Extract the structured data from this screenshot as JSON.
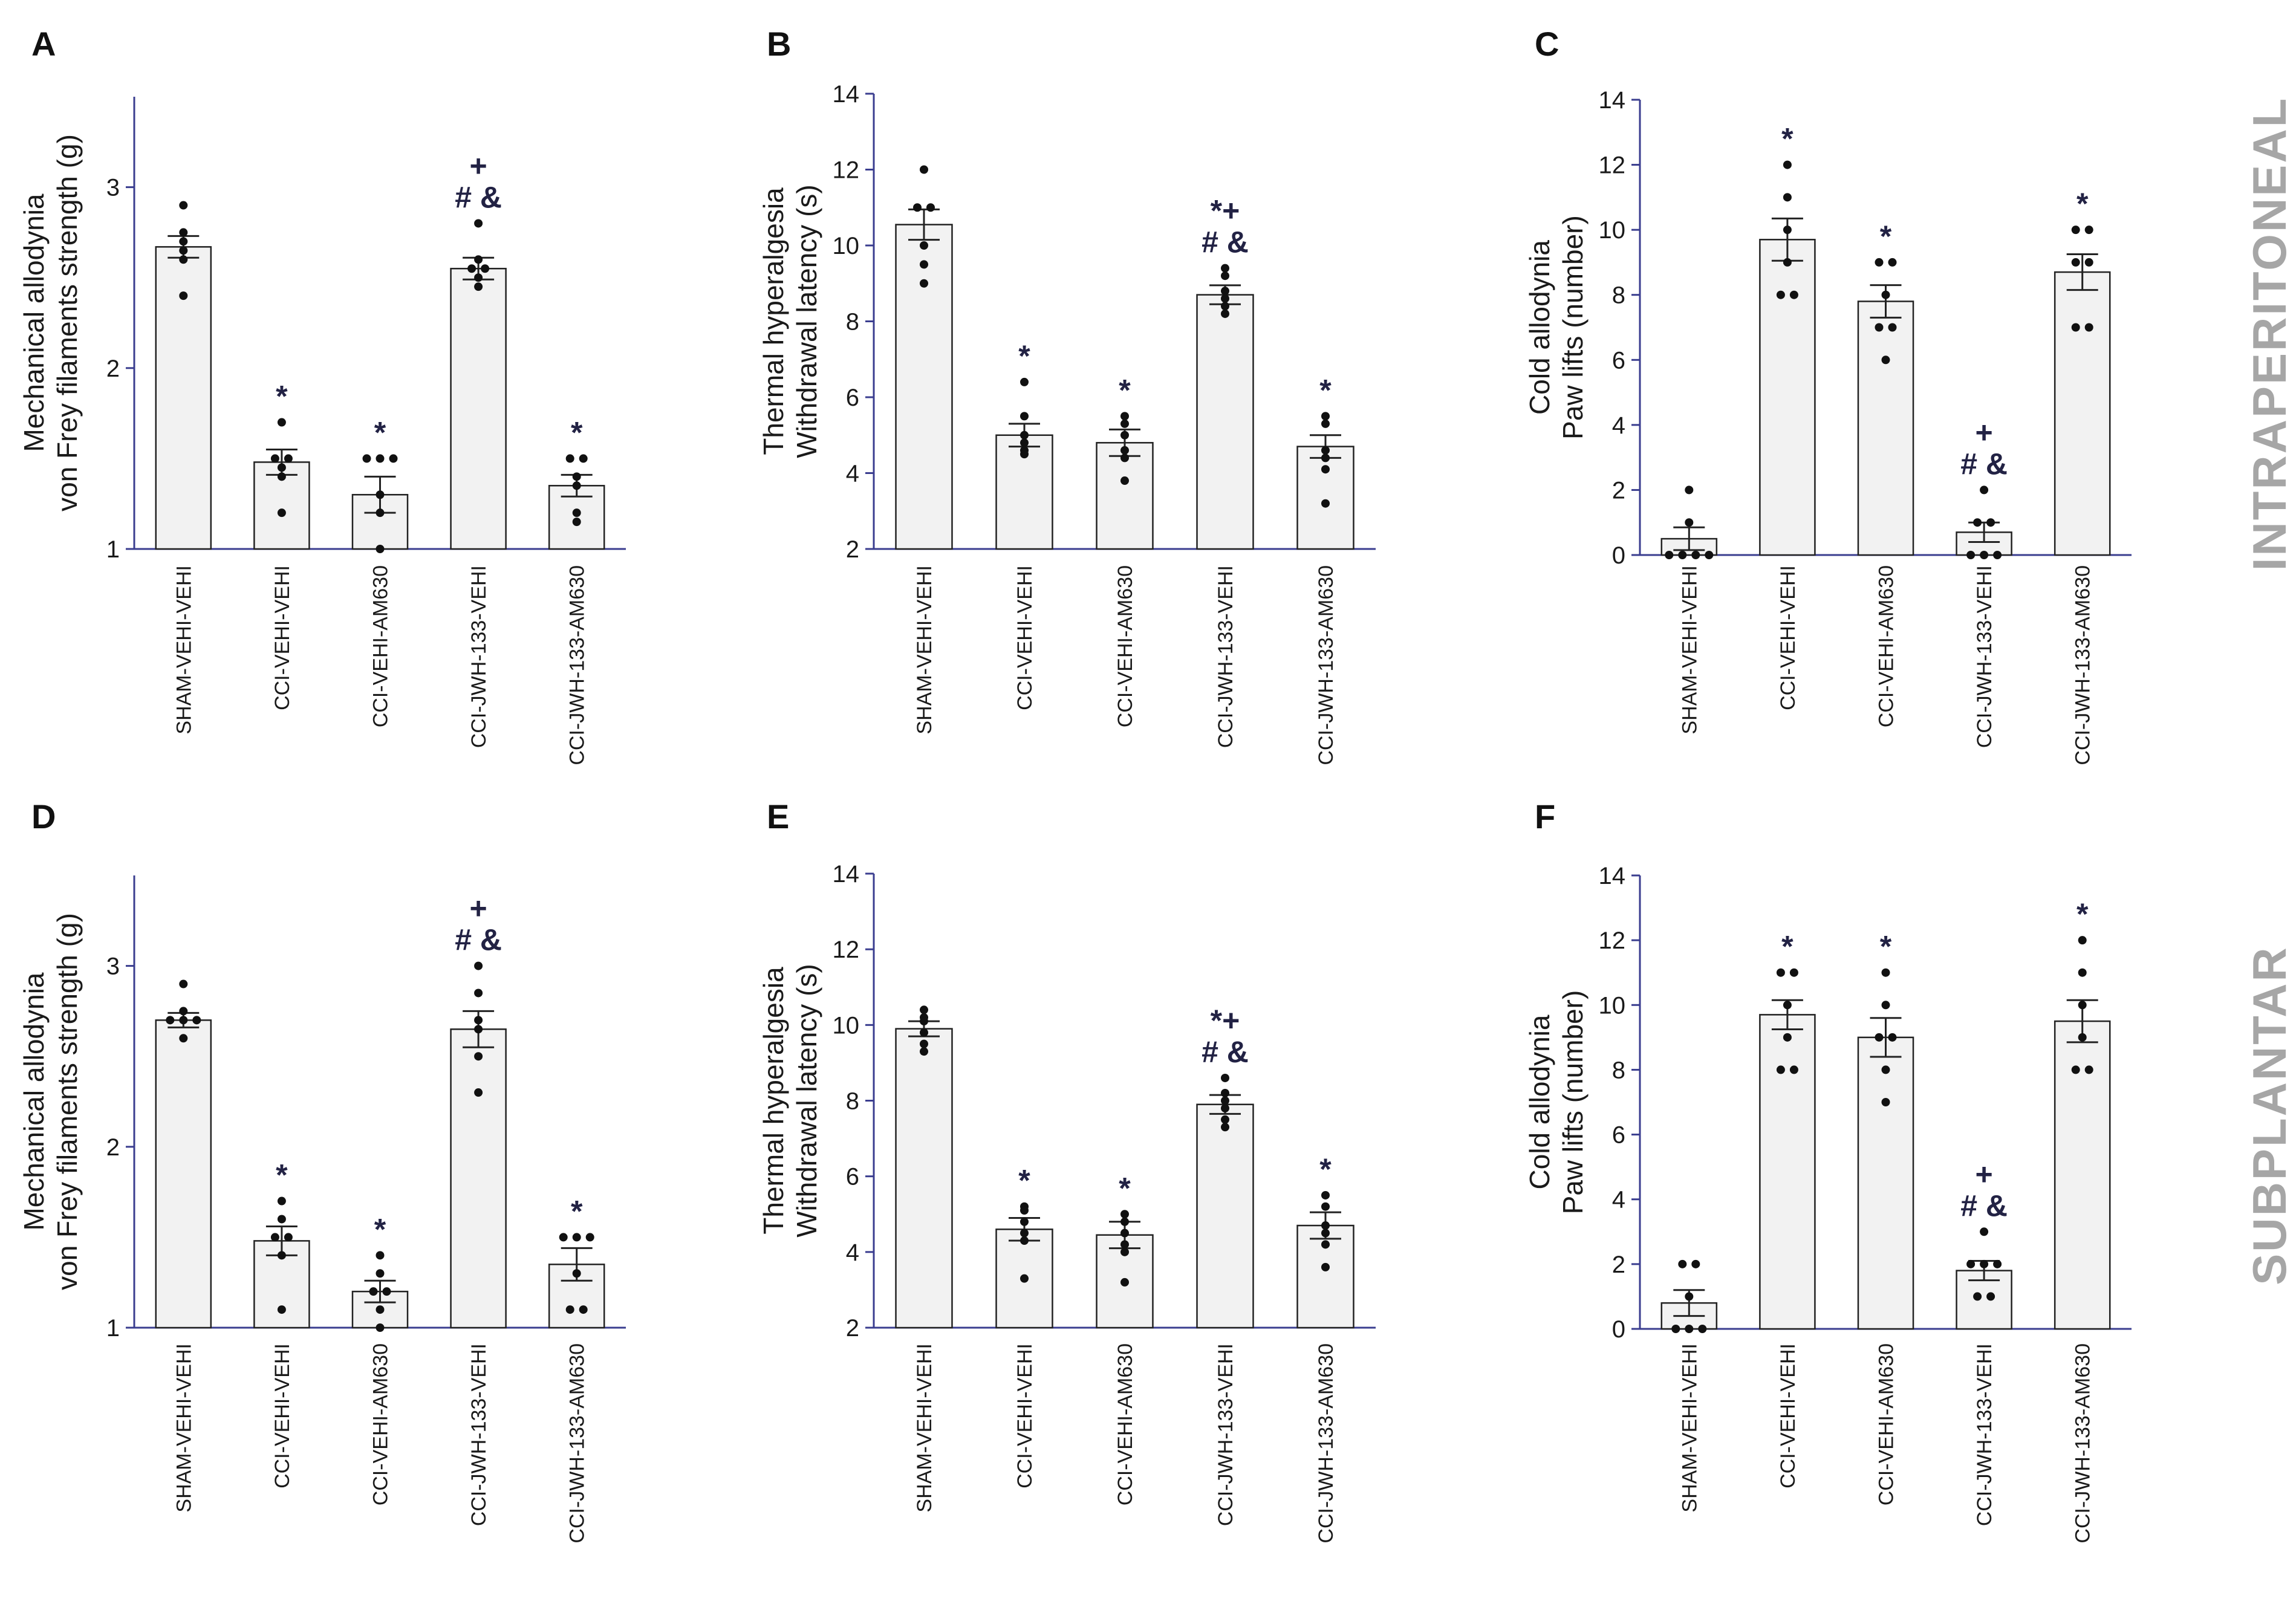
{
  "figure": {
    "row_labels": [
      "INTRAPERITONEAL",
      "SUBPLANTAR"
    ]
  },
  "colors": {
    "axis": "#3a3d8f",
    "bar_fill": "#f2f2f2",
    "bar_stroke": "#222222",
    "dot": "#111111",
    "significance": "#222244",
    "side_label": "#a6a6a6"
  },
  "chart_data": [
    {
      "panel": "A",
      "type": "bar",
      "row": "INTRAPERITONEAL",
      "ylabel": [
        "Mechanical allodynia",
        "von Frey filaments strength (g)"
      ],
      "ylim": [
        1,
        3.5
      ],
      "yticks": [
        1,
        2,
        3
      ],
      "categories": [
        "SHAM-VEHI-VEHI",
        "CCI-VEHI-VEHI",
        "CCI-VEHI-AM630",
        "CCI-JWH-133-VEHI",
        "CCI-JWH-133-AM630"
      ],
      "values": [
        2.67,
        1.48,
        1.3,
        2.55,
        1.35
      ],
      "sem": [
        0.06,
        0.07,
        0.1,
        0.06,
        0.06
      ],
      "points": [
        [
          2.9,
          2.75,
          2.7,
          2.65,
          2.6,
          2.4
        ],
        [
          1.7,
          1.5,
          1.5,
          1.45,
          1.4,
          1.2
        ],
        [
          1.5,
          1.5,
          1.5,
          1.3,
          1.2,
          1.0
        ],
        [
          2.8,
          2.6,
          2.55,
          2.55,
          2.5,
          2.45
        ],
        [
          1.5,
          1.5,
          1.4,
          1.35,
          1.2,
          1.15
        ]
      ],
      "significance": [
        [],
        [
          "*"
        ],
        [
          "*"
        ],
        [
          "+",
          "# &"
        ],
        [
          "*"
        ]
      ]
    },
    {
      "panel": "B",
      "type": "bar",
      "row": "INTRAPERITONEAL",
      "ylabel": [
        "Thermal hyperalgesia",
        "Withdrawal latency (s)"
      ],
      "ylim": [
        2,
        14
      ],
      "yticks": [
        2,
        4,
        6,
        8,
        10,
        12,
        14
      ],
      "categories": [
        "SHAM-VEHI-VEHI",
        "CCI-VEHI-VEHI",
        "CCI-VEHI-AM630",
        "CCI-JWH-133-VEHI",
        "CCI-JWH-133-AM630"
      ],
      "values": [
        10.55,
        5.0,
        4.8,
        8.7,
        4.7
      ],
      "sem": [
        0.4,
        0.3,
        0.35,
        0.25,
        0.3
      ],
      "points": [
        [
          12.0,
          11.0,
          11.0,
          10.0,
          9.5,
          9.0
        ],
        [
          6.4,
          5.5,
          5.0,
          4.8,
          4.6,
          4.5
        ],
        [
          5.5,
          5.3,
          5.0,
          4.6,
          4.4,
          3.8
        ],
        [
          9.4,
          9.2,
          8.8,
          8.6,
          8.4,
          8.2
        ],
        [
          5.5,
          5.3,
          4.6,
          4.4,
          4.1,
          3.2
        ]
      ],
      "significance": [
        [],
        [
          "*"
        ],
        [
          "*"
        ],
        [
          "*+",
          "# &"
        ],
        [
          "*"
        ]
      ]
    },
    {
      "panel": "C",
      "type": "bar",
      "row": "INTRAPERITONEAL",
      "ylabel": [
        "Cold allodynia",
        "Paw lifts (number)"
      ],
      "ylim": [
        0,
        14
      ],
      "yticks": [
        0,
        2,
        4,
        6,
        8,
        10,
        12,
        14
      ],
      "categories": [
        "SHAM-VEHI-VEHI",
        "CCI-VEHI-VEHI",
        "CCI-VEHI-AM630",
        "CCI-JWH-133-VEHI",
        "CCI-JWH-133-AM630"
      ],
      "values": [
        0.5,
        9.7,
        7.8,
        0.7,
        8.7
      ],
      "sem": [
        0.35,
        0.65,
        0.5,
        0.3,
        0.55
      ],
      "points": [
        [
          2.0,
          1.0,
          0.0,
          0.0,
          0.0,
          0.0
        ],
        [
          12.0,
          11.0,
          10.0,
          9.0,
          8.0,
          8.0
        ],
        [
          9.0,
          9.0,
          8.0,
          7.0,
          7.0,
          6.0
        ],
        [
          2.0,
          1.0,
          1.0,
          0.0,
          0.0,
          0.0
        ],
        [
          10.0,
          10.0,
          9.0,
          9.0,
          7.0,
          7.0
        ]
      ],
      "significance": [
        [],
        [
          "*"
        ],
        [
          "*"
        ],
        [
          "+",
          "# &"
        ],
        [
          "*"
        ]
      ]
    },
    {
      "panel": "D",
      "type": "bar",
      "row": "SUBPLANTAR",
      "ylabel": [
        "Mechanical allodynia",
        "von Frey filaments strength (g)"
      ],
      "ylim": [
        1,
        3.5
      ],
      "yticks": [
        1,
        2,
        3
      ],
      "categories": [
        "SHAM-VEHI-VEHI",
        "CCI-VEHI-VEHI",
        "CCI-VEHI-AM630",
        "CCI-JWH-133-VEHI",
        "CCI-JWH-133-AM630"
      ],
      "values": [
        2.7,
        1.48,
        1.2,
        2.65,
        1.35
      ],
      "sem": [
        0.04,
        0.08,
        0.06,
        0.1,
        0.09
      ],
      "points": [
        [
          2.9,
          2.75,
          2.7,
          2.7,
          2.7,
          2.6
        ],
        [
          1.7,
          1.6,
          1.5,
          1.5,
          1.4,
          1.1
        ],
        [
          1.4,
          1.3,
          1.2,
          1.2,
          1.1,
          1.0
        ],
        [
          3.0,
          2.85,
          2.7,
          2.65,
          2.5,
          2.3
        ],
        [
          1.5,
          1.5,
          1.5,
          1.3,
          1.1,
          1.1
        ]
      ],
      "significance": [
        [],
        [
          "*"
        ],
        [
          "*"
        ],
        [
          "+",
          "# &"
        ],
        [
          "*"
        ]
      ]
    },
    {
      "panel": "E",
      "type": "bar",
      "row": "SUBPLANTAR",
      "ylabel": [
        "Thermal hyperalgesia",
        "Withdrawal latency (s)"
      ],
      "ylim": [
        2,
        14
      ],
      "yticks": [
        2,
        4,
        6,
        8,
        10,
        12,
        14
      ],
      "categories": [
        "SHAM-VEHI-VEHI",
        "CCI-VEHI-VEHI",
        "CCI-VEHI-AM630",
        "CCI-JWH-133-VEHI",
        "CCI-JWH-133-AM630"
      ],
      "values": [
        9.9,
        4.6,
        4.45,
        7.9,
        4.7
      ],
      "sem": [
        0.2,
        0.3,
        0.35,
        0.25,
        0.35
      ],
      "points": [
        [
          10.4,
          10.2,
          10.1,
          9.8,
          9.5,
          9.3
        ],
        [
          5.2,
          5.1,
          4.8,
          4.5,
          4.3,
          3.3
        ],
        [
          5.0,
          4.8,
          4.5,
          4.2,
          4.0,
          3.2
        ],
        [
          8.6,
          8.2,
          8.0,
          7.8,
          7.5,
          7.3
        ],
        [
          5.5,
          5.2,
          4.7,
          4.5,
          4.2,
          3.6
        ]
      ],
      "significance": [
        [],
        [
          "*"
        ],
        [
          "*"
        ],
        [
          "*+",
          "# &"
        ],
        [
          "*"
        ]
      ]
    },
    {
      "panel": "F",
      "type": "bar",
      "row": "SUBPLANTAR",
      "ylabel": [
        "Cold allodynia",
        "Paw lifts (number)"
      ],
      "ylim": [
        0,
        14
      ],
      "yticks": [
        0,
        2,
        4,
        6,
        8,
        10,
        12,
        14
      ],
      "categories": [
        "SHAM-VEHI-VEHI",
        "CCI-VEHI-VEHI",
        "CCI-VEHI-AM630",
        "CCI-JWH-133-VEHI",
        "CCI-JWH-133-AM630"
      ],
      "values": [
        0.8,
        9.7,
        9.0,
        1.8,
        9.5
      ],
      "sem": [
        0.4,
        0.45,
        0.6,
        0.3,
        0.65
      ],
      "points": [
        [
          2.0,
          2.0,
          1.0,
          0.0,
          0.0,
          0.0
        ],
        [
          11.0,
          11.0,
          10.0,
          9.0,
          8.0,
          8.0
        ],
        [
          11.0,
          10.0,
          9.0,
          9.0,
          8.0,
          7.0
        ],
        [
          3.0,
          2.0,
          2.0,
          2.0,
          1.0,
          1.0
        ],
        [
          12.0,
          11.0,
          10.0,
          9.0,
          8.0,
          8.0
        ]
      ],
      "significance": [
        [],
        [
          "*"
        ],
        [
          "*"
        ],
        [
          "+",
          "# &"
        ],
        [
          "*"
        ]
      ]
    }
  ]
}
